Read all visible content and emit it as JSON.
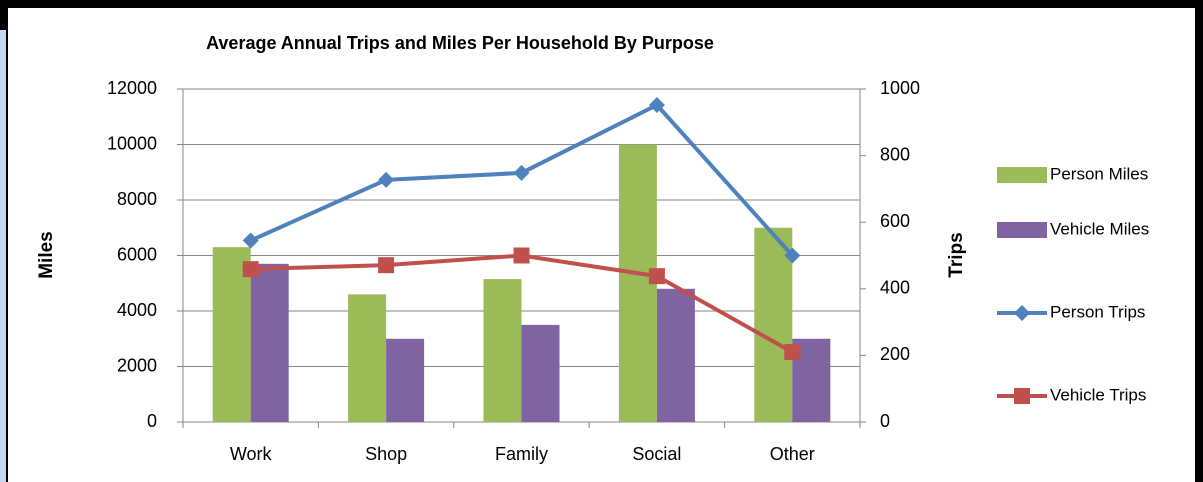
{
  "chart_data": {
    "type": "combo",
    "title": "Average Annual Trips and Miles Per Household By Purpose",
    "y_label": "Miles",
    "y2_label": "Trips",
    "categories": [
      "Work",
      "Shop",
      "Family",
      "Social",
      "Other"
    ],
    "series": [
      {
        "name": "Person Miles",
        "type": "bar",
        "axis": "y",
        "color": "#9bbb59",
        "values": [
          6300,
          4600,
          5150,
          10000,
          7000
        ]
      },
      {
        "name": "Vehicle Miles",
        "type": "bar",
        "axis": "y",
        "color": "#8064a2",
        "values": [
          5700,
          3000,
          3500,
          4800,
          3000
        ]
      },
      {
        "name": "Person Trips",
        "type": "line",
        "axis": "y2",
        "marker": "diamond",
        "color": "#4f81bd",
        "values": [
          545,
          727,
          748,
          952,
          500
        ]
      },
      {
        "name": "Vehicle Trips",
        "type": "line",
        "axis": "y2",
        "marker": "square",
        "color": "#c0504d",
        "values": [
          459,
          471,
          500,
          438,
          210
        ]
      }
    ],
    "ylim": [
      0,
      12000
    ],
    "yticks": [
      0,
      2000,
      4000,
      6000,
      8000,
      10000,
      12000
    ],
    "y2lim": [
      0,
      1000
    ],
    "y2ticks": [
      0,
      200,
      400,
      600,
      800,
      1000
    ],
    "grid": true,
    "legend": "right"
  }
}
